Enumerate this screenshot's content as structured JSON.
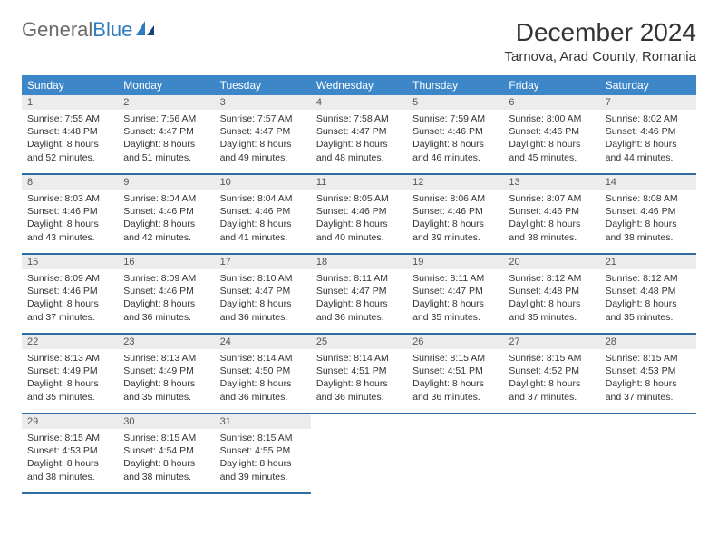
{
  "brand": {
    "part1": "General",
    "part2": "Blue"
  },
  "title": "December 2024",
  "location": "Tarnova, Arad County, Romania",
  "colors": {
    "header_bg": "#3d87c9",
    "header_text": "#ffffff",
    "row_divider": "#2e6da4",
    "daynum_bg": "#ececec",
    "brand_blue": "#2e7bbf",
    "brand_gray": "#6a6a6a",
    "text": "#333333",
    "page_bg": "#ffffff"
  },
  "weekdays": [
    "Sunday",
    "Monday",
    "Tuesday",
    "Wednesday",
    "Thursday",
    "Friday",
    "Saturday"
  ],
  "weeks": [
    [
      {
        "n": "1",
        "sr": "7:55 AM",
        "ss": "4:48 PM",
        "dl": "8 hours and 52 minutes."
      },
      {
        "n": "2",
        "sr": "7:56 AM",
        "ss": "4:47 PM",
        "dl": "8 hours and 51 minutes."
      },
      {
        "n": "3",
        "sr": "7:57 AM",
        "ss": "4:47 PM",
        "dl": "8 hours and 49 minutes."
      },
      {
        "n": "4",
        "sr": "7:58 AM",
        "ss": "4:47 PM",
        "dl": "8 hours and 48 minutes."
      },
      {
        "n": "5",
        "sr": "7:59 AM",
        "ss": "4:46 PM",
        "dl": "8 hours and 46 minutes."
      },
      {
        "n": "6",
        "sr": "8:00 AM",
        "ss": "4:46 PM",
        "dl": "8 hours and 45 minutes."
      },
      {
        "n": "7",
        "sr": "8:02 AM",
        "ss": "4:46 PM",
        "dl": "8 hours and 44 minutes."
      }
    ],
    [
      {
        "n": "8",
        "sr": "8:03 AM",
        "ss": "4:46 PM",
        "dl": "8 hours and 43 minutes."
      },
      {
        "n": "9",
        "sr": "8:04 AM",
        "ss": "4:46 PM",
        "dl": "8 hours and 42 minutes."
      },
      {
        "n": "10",
        "sr": "8:04 AM",
        "ss": "4:46 PM",
        "dl": "8 hours and 41 minutes."
      },
      {
        "n": "11",
        "sr": "8:05 AM",
        "ss": "4:46 PM",
        "dl": "8 hours and 40 minutes."
      },
      {
        "n": "12",
        "sr": "8:06 AM",
        "ss": "4:46 PM",
        "dl": "8 hours and 39 minutes."
      },
      {
        "n": "13",
        "sr": "8:07 AM",
        "ss": "4:46 PM",
        "dl": "8 hours and 38 minutes."
      },
      {
        "n": "14",
        "sr": "8:08 AM",
        "ss": "4:46 PM",
        "dl": "8 hours and 38 minutes."
      }
    ],
    [
      {
        "n": "15",
        "sr": "8:09 AM",
        "ss": "4:46 PM",
        "dl": "8 hours and 37 minutes."
      },
      {
        "n": "16",
        "sr": "8:09 AM",
        "ss": "4:46 PM",
        "dl": "8 hours and 36 minutes."
      },
      {
        "n": "17",
        "sr": "8:10 AM",
        "ss": "4:47 PM",
        "dl": "8 hours and 36 minutes."
      },
      {
        "n": "18",
        "sr": "8:11 AM",
        "ss": "4:47 PM",
        "dl": "8 hours and 36 minutes."
      },
      {
        "n": "19",
        "sr": "8:11 AM",
        "ss": "4:47 PM",
        "dl": "8 hours and 35 minutes."
      },
      {
        "n": "20",
        "sr": "8:12 AM",
        "ss": "4:48 PM",
        "dl": "8 hours and 35 minutes."
      },
      {
        "n": "21",
        "sr": "8:12 AM",
        "ss": "4:48 PM",
        "dl": "8 hours and 35 minutes."
      }
    ],
    [
      {
        "n": "22",
        "sr": "8:13 AM",
        "ss": "4:49 PM",
        "dl": "8 hours and 35 minutes."
      },
      {
        "n": "23",
        "sr": "8:13 AM",
        "ss": "4:49 PM",
        "dl": "8 hours and 35 minutes."
      },
      {
        "n": "24",
        "sr": "8:14 AM",
        "ss": "4:50 PM",
        "dl": "8 hours and 36 minutes."
      },
      {
        "n": "25",
        "sr": "8:14 AM",
        "ss": "4:51 PM",
        "dl": "8 hours and 36 minutes."
      },
      {
        "n": "26",
        "sr": "8:15 AM",
        "ss": "4:51 PM",
        "dl": "8 hours and 36 minutes."
      },
      {
        "n": "27",
        "sr": "8:15 AM",
        "ss": "4:52 PM",
        "dl": "8 hours and 37 minutes."
      },
      {
        "n": "28",
        "sr": "8:15 AM",
        "ss": "4:53 PM",
        "dl": "8 hours and 37 minutes."
      }
    ],
    [
      {
        "n": "29",
        "sr": "8:15 AM",
        "ss": "4:53 PM",
        "dl": "8 hours and 38 minutes."
      },
      {
        "n": "30",
        "sr": "8:15 AM",
        "ss": "4:54 PM",
        "dl": "8 hours and 38 minutes."
      },
      {
        "n": "31",
        "sr": "8:15 AM",
        "ss": "4:55 PM",
        "dl": "8 hours and 39 minutes."
      },
      null,
      null,
      null,
      null
    ]
  ],
  "labels": {
    "sunrise_prefix": "Sunrise: ",
    "sunset_prefix": "Sunset: ",
    "daylight_prefix": "Daylight: "
  }
}
